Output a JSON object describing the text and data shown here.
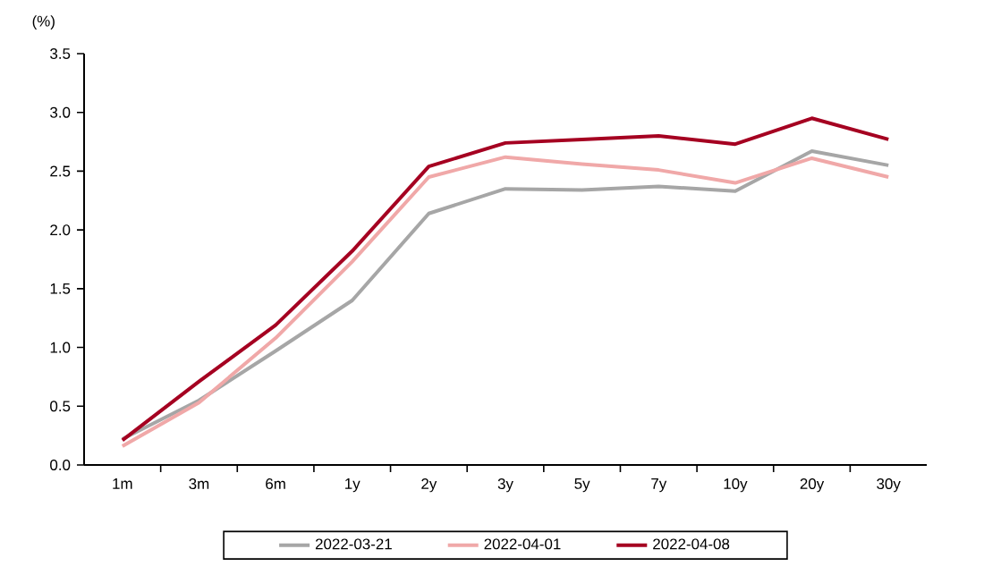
{
  "chart_data": {
    "type": "line",
    "ylabel": "(%)",
    "categories": [
      "1m",
      "3m",
      "6m",
      "1y",
      "2y",
      "3y",
      "5y",
      "7y",
      "10y",
      "20y",
      "30y"
    ],
    "ylim": [
      0,
      3.5
    ],
    "yticks": [
      {
        "value": 0,
        "label": "0.0"
      },
      {
        "value": 0.5,
        "label": "0.5"
      },
      {
        "value": 1,
        "label": "1.0"
      },
      {
        "value": 1.5,
        "label": "1.5"
      },
      {
        "value": 2,
        "label": "2.0"
      },
      {
        "value": 2.5,
        "label": "2.5"
      },
      {
        "value": 3,
        "label": "3.0"
      },
      {
        "value": 3.5,
        "label": "3.5"
      }
    ],
    "legend": "bottom",
    "series": [
      {
        "name": "2022-03-21",
        "color": "#a6a6a6",
        "values": [
          0.22,
          0.55,
          0.97,
          1.4,
          2.14,
          2.35,
          2.34,
          2.37,
          2.33,
          2.67,
          2.55
        ]
      },
      {
        "name": "2022-04-01",
        "color": "#f0a8a8",
        "values": [
          0.16,
          0.53,
          1.08,
          1.73,
          2.45,
          2.62,
          2.56,
          2.51,
          2.4,
          2.61,
          2.45
        ]
      },
      {
        "name": "2022-04-08",
        "color": "#a50021",
        "values": [
          0.21,
          0.71,
          1.19,
          1.82,
          2.54,
          2.74,
          2.77,
          2.8,
          2.73,
          2.95,
          2.77
        ]
      }
    ]
  }
}
